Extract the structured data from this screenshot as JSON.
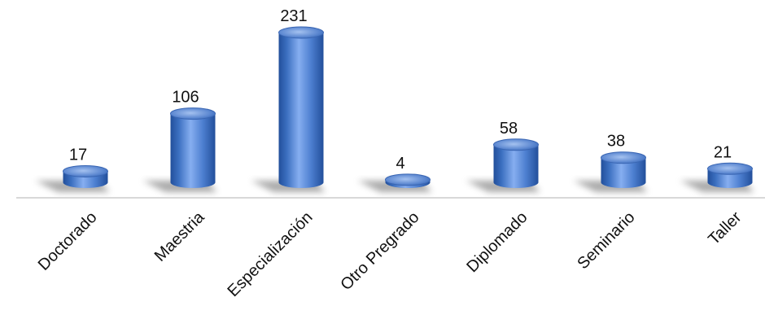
{
  "chart_data": {
    "type": "bar",
    "categories": [
      "Doctorado",
      "Maestria",
      "Especialización",
      "Otro Pregrado",
      "Diplomado",
      "Seminario",
      "Taller"
    ],
    "values": [
      17,
      106,
      231,
      4,
      58,
      38,
      21
    ],
    "title": "",
    "xlabel": "",
    "ylabel": "",
    "ylim": [
      0,
      231
    ],
    "grid": false,
    "legend": "none"
  },
  "colors": {
    "bar_light": "#86aef0",
    "bar_main": "#4d7fd0",
    "bar_dark": "#224f9b",
    "bar_top": "#5f8ad2",
    "bar_top_light": "#a5c2f0",
    "shadow": "#7f7f7f",
    "axis": "#d8d8d8"
  },
  "icons": {
    "bar_shape": "3d-cylinder"
  }
}
